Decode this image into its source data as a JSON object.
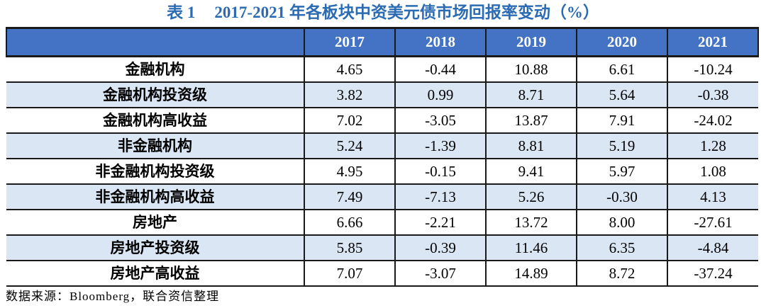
{
  "title": {
    "label": "表 1",
    "text": "2017-2021 年各板块中资美元债市场回报率变动（%）"
  },
  "table": {
    "header": [
      "",
      "2017",
      "2018",
      "2019",
      "2020",
      "2021"
    ],
    "rows": [
      {
        "label": "金融机构",
        "values": [
          "4.65",
          "-0.44",
          "10.88",
          "6.61",
          "-10.24"
        ]
      },
      {
        "label": "金融机构投资级",
        "values": [
          "3.82",
          "0.99",
          "8.71",
          "5.64",
          "-0.38"
        ]
      },
      {
        "label": "金融机构高收益",
        "values": [
          "7.02",
          "-3.05",
          "13.87",
          "7.91",
          "-24.02"
        ]
      },
      {
        "label": "非金融机构",
        "values": [
          "5.24",
          "-1.39",
          "8.81",
          "5.19",
          "1.28"
        ]
      },
      {
        "label": "非金融机构投资级",
        "values": [
          "4.95",
          "-0.15",
          "9.41",
          "5.97",
          "1.08"
        ]
      },
      {
        "label": "非金融机构高收益",
        "values": [
          "7.49",
          "-7.13",
          "5.26",
          "-0.30",
          "4.13"
        ]
      },
      {
        "label": "房地产",
        "values": [
          "6.66",
          "-2.21",
          "13.72",
          "8.00",
          "-27.61"
        ]
      },
      {
        "label": "房地产投资级",
        "values": [
          "5.85",
          "-0.39",
          "11.46",
          "6.35",
          "-4.84"
        ]
      },
      {
        "label": "房地产高收益",
        "values": [
          "7.07",
          "-3.07",
          "14.89",
          "8.72",
          "-37.24"
        ]
      }
    ]
  },
  "footer": {
    "source": "数据来源：Bloomberg，联合资信整理"
  },
  "colors": {
    "header_bg": "#4472C4",
    "stripe_bg": "#DAE6F4",
    "title_color": "#2B6BB3",
    "border": "#1a1a1a"
  },
  "chart_data": {
    "type": "table",
    "title": "表 1 2017-2021 年各板块中资美元债市场回报率变动（%）",
    "categories": [
      "2017",
      "2018",
      "2019",
      "2020",
      "2021"
    ],
    "series": [
      {
        "name": "金融机构",
        "values": [
          4.65,
          -0.44,
          10.88,
          6.61,
          -10.24
        ]
      },
      {
        "name": "金融机构投资级",
        "values": [
          3.82,
          0.99,
          8.71,
          5.64,
          -0.38
        ]
      },
      {
        "name": "金融机构高收益",
        "values": [
          7.02,
          -3.05,
          13.87,
          7.91,
          -24.02
        ]
      },
      {
        "name": "非金融机构",
        "values": [
          5.24,
          -1.39,
          8.81,
          5.19,
          1.28
        ]
      },
      {
        "name": "非金融机构投资级",
        "values": [
          4.95,
          -0.15,
          9.41,
          5.97,
          1.08
        ]
      },
      {
        "name": "非金融机构高收益",
        "values": [
          7.49,
          -7.13,
          5.26,
          -0.3,
          4.13
        ]
      },
      {
        "name": "房地产",
        "values": [
          6.66,
          -2.21,
          13.72,
          8.0,
          -27.61
        ]
      },
      {
        "name": "房地产投资级",
        "values": [
          5.85,
          -0.39,
          11.46,
          6.35,
          -4.84
        ]
      },
      {
        "name": "房地产高收益",
        "values": [
          7.07,
          -3.07,
          14.89,
          8.72,
          -37.24
        ]
      }
    ],
    "source": "数据来源：Bloomberg，联合资信整理"
  }
}
